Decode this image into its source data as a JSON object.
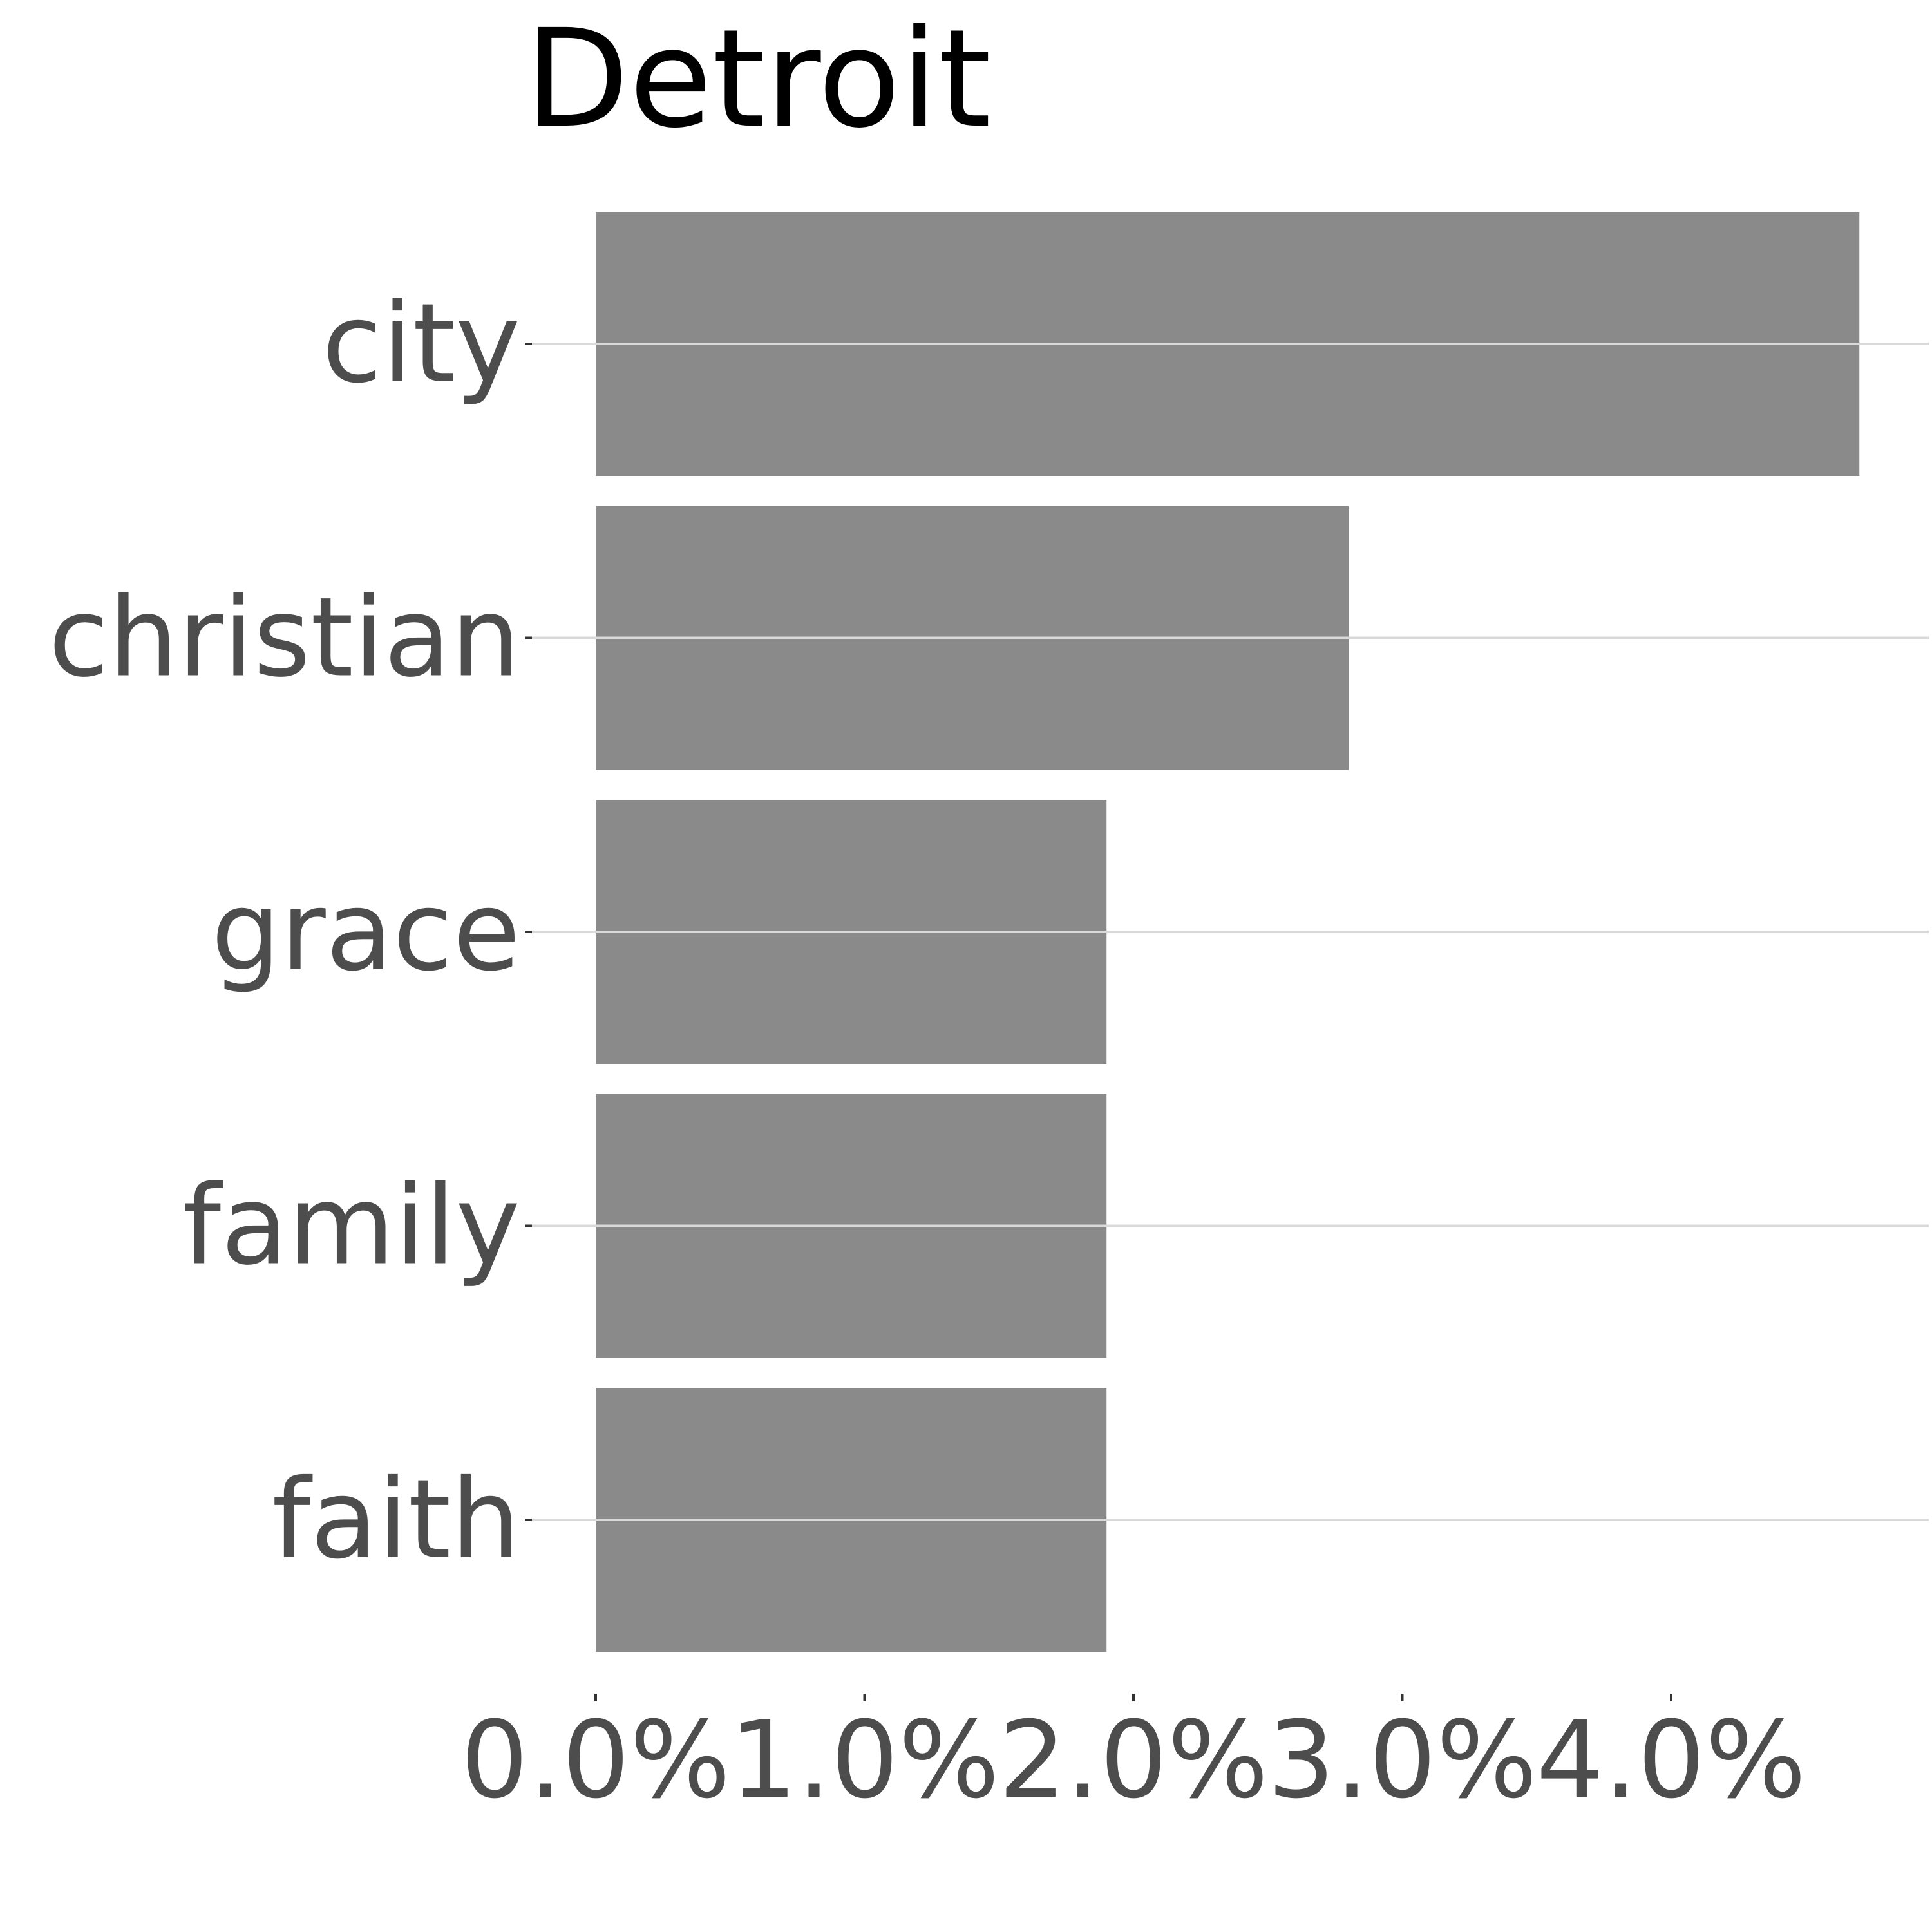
{
  "chart_data": {
    "type": "bar",
    "orientation": "horizontal",
    "title": "Detroit",
    "categories": [
      "city",
      "christian",
      "grace",
      "family",
      "faith"
    ],
    "values": [
      4.7,
      2.8,
      1.9,
      1.9,
      1.9
    ],
    "value_unit": "%",
    "xlim": [
      0,
      5.0
    ],
    "x_ticks": [
      0,
      1,
      2,
      3,
      4
    ],
    "x_tick_labels": [
      "0.0%",
      "1.0%",
      "2.0%",
      "3.0%",
      "4.0%"
    ],
    "xlabel": "",
    "ylabel": "",
    "grid": "horizontal major lines at categories",
    "legend": "none",
    "colors": {
      "bar": "#8a8a8a",
      "grid": "#d9d9d9",
      "text": "#4d4d4d",
      "title": "#000000",
      "background": "#ffffff"
    }
  }
}
